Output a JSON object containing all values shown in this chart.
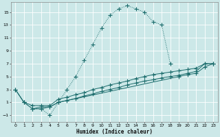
{
  "xlabel": "Humidex (Indice chaleur)",
  "bg_color": "#cce8e8",
  "line_color": "#1a6b6b",
  "grid_color": "#b8d8d8",
  "xlim": [
    -0.5,
    23.5
  ],
  "ylim": [
    -2,
    16.5
  ],
  "xticks": [
    0,
    1,
    2,
    3,
    4,
    5,
    6,
    7,
    8,
    9,
    10,
    11,
    12,
    13,
    14,
    15,
    16,
    17,
    18,
    19,
    20,
    21,
    22,
    23
  ],
  "yticks": [
    -1,
    1,
    3,
    5,
    7,
    9,
    11,
    13,
    15
  ],
  "curve1_x": [
    0,
    1,
    2,
    3,
    4,
    5,
    6,
    7,
    8,
    9,
    10,
    11,
    12,
    13,
    14,
    15,
    16,
    17,
    18
  ],
  "curve1_y": [
    3,
    1,
    0,
    0,
    -1,
    1,
    3,
    5,
    7.5,
    10,
    12.5,
    14.5,
    15.5,
    16,
    15.5,
    15,
    13.5,
    13,
    7
  ],
  "curve2_x": [
    0,
    1,
    2,
    3,
    4,
    5,
    6,
    7,
    8,
    9,
    10,
    11,
    12,
    13,
    14,
    15,
    16,
    17,
    18,
    19,
    20,
    21,
    22,
    23
  ],
  "curve2_y": [
    3,
    1,
    0.5,
    0.5,
    0.5,
    1.5,
    1.8,
    2.2,
    2.5,
    3.0,
    3.3,
    3.7,
    4.0,
    4.3,
    4.7,
    5.0,
    5.3,
    5.5,
    5.7,
    5.9,
    6.1,
    6.3,
    7.0,
    7.0
  ],
  "curve3_x": [
    0,
    1,
    2,
    3,
    4,
    5,
    6,
    7,
    8,
    9,
    10,
    11,
    12,
    13,
    14,
    15,
    16,
    17,
    18,
    19,
    20,
    21,
    22,
    23
  ],
  "curve3_y": [
    3,
    1,
    0,
    0,
    0.3,
    1.0,
    1.3,
    1.6,
    2.0,
    2.3,
    2.7,
    3.0,
    3.3,
    3.7,
    4.0,
    4.3,
    4.5,
    4.8,
    5.0,
    5.2,
    5.5,
    5.8,
    7.0,
    7.0
  ],
  "curve4_x": [
    2,
    3,
    4,
    5,
    19,
    20,
    21,
    22,
    23
  ],
  "curve4_y": [
    0.0,
    0.3,
    0.3,
    1.0,
    5.0,
    5.3,
    5.5,
    6.5,
    7.0
  ]
}
